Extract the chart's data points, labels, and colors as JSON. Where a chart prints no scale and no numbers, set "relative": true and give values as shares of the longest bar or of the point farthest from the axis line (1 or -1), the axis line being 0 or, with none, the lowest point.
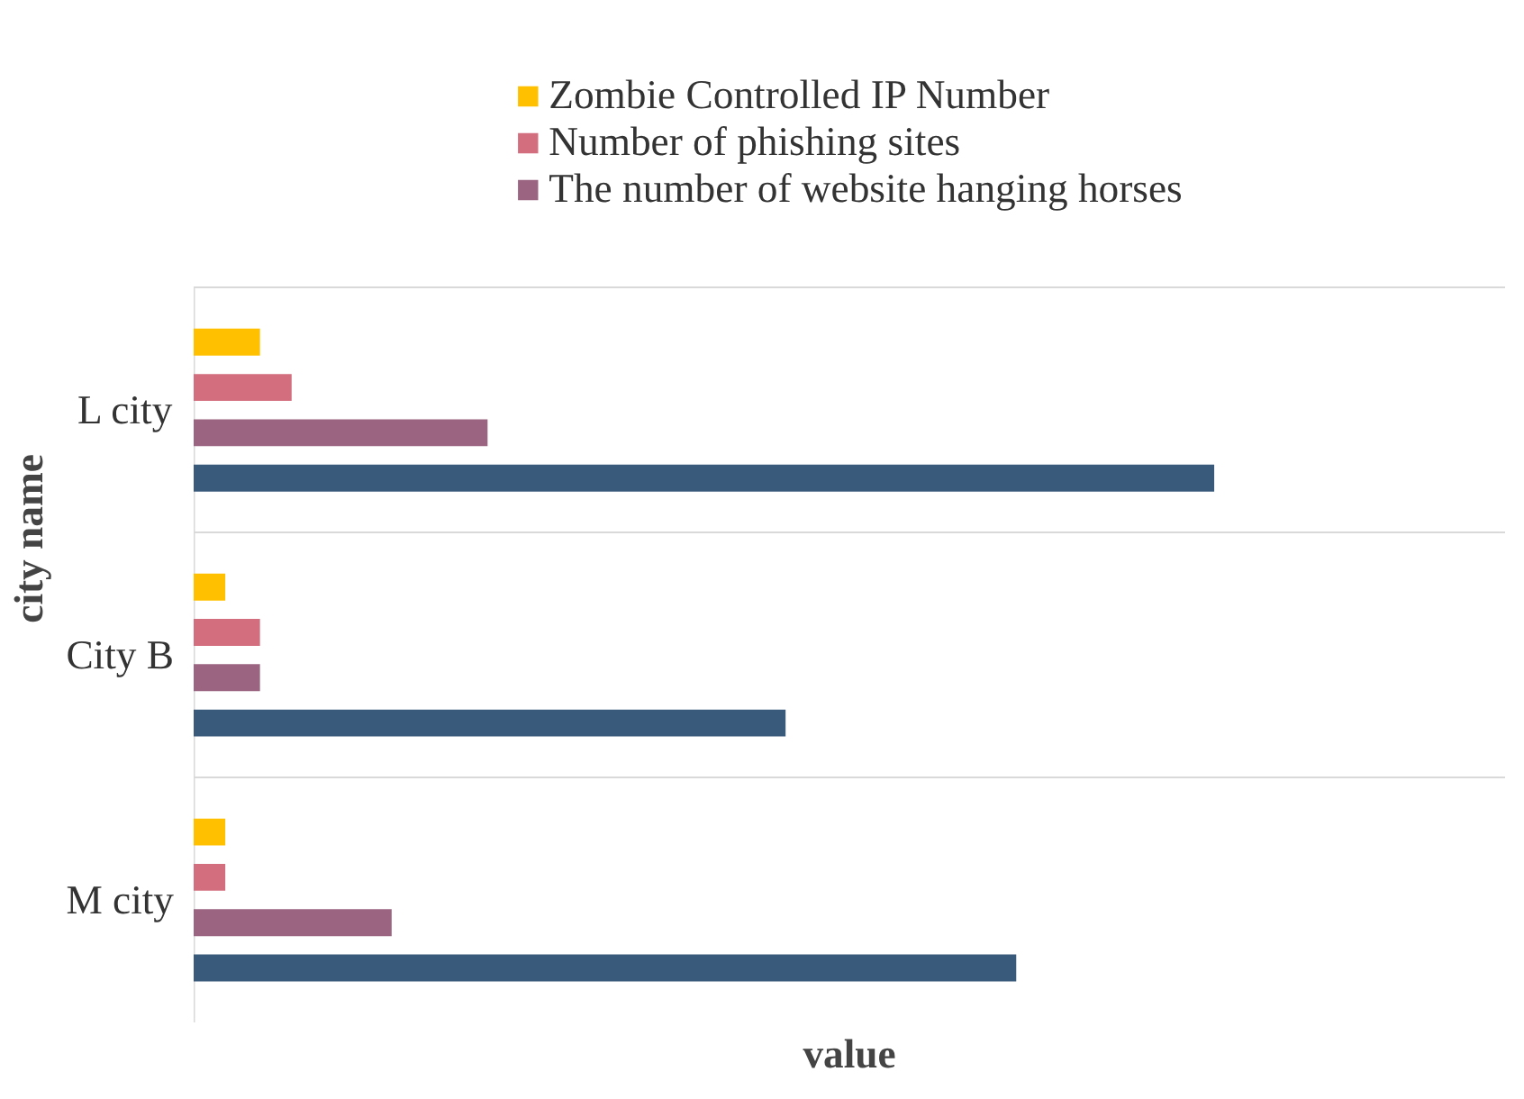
{
  "chart_data": {
    "type": "bar",
    "orientation": "horizontal",
    "relative": true,
    "xlabel": "value",
    "ylabel": "city name",
    "categories": [
      "L city",
      "City B",
      "M city"
    ],
    "series": [
      {
        "name": "Zombie Controlled IP Number",
        "color": "#ffc000",
        "values": [
          0.065,
          0.031,
          0.031
        ]
      },
      {
        "name": "Number of phishing sites",
        "color": "#d36e7e",
        "values": [
          0.096,
          0.065,
          0.031
        ]
      },
      {
        "name": "The number of website hanging horses",
        "color": "#9b6480",
        "values": [
          0.288,
          0.065,
          0.194
        ]
      },
      {
        "color": "#3a5a7c",
        "values": [
          1,
          0.58,
          0.806
        ]
      }
    ],
    "grid": "y",
    "legend": "top"
  }
}
